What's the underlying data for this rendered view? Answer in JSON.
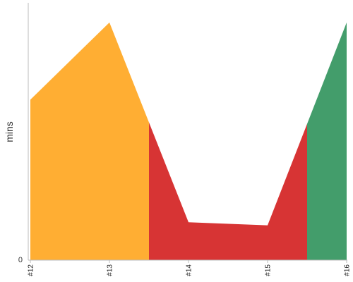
{
  "chart_data": {
    "type": "area",
    "x": [
      "#12",
      "#13",
      "#14",
      "#15",
      "#16"
    ],
    "values": [
      10.6,
      15.7,
      2.5,
      2.3,
      15.7
    ],
    "ylabel": "mins",
    "xlabel": "",
    "yticks": [
      "0"
    ],
    "ylim": [
      0,
      17
    ],
    "segments": [
      {
        "from": 0,
        "to": 1.5,
        "color": "#ffae33"
      },
      {
        "from": 1.5,
        "to": 3.5,
        "color": "#d73434"
      },
      {
        "from": 3.5,
        "to": 4,
        "color": "#439d6b"
      }
    ],
    "grid": false,
    "legend": "none"
  }
}
